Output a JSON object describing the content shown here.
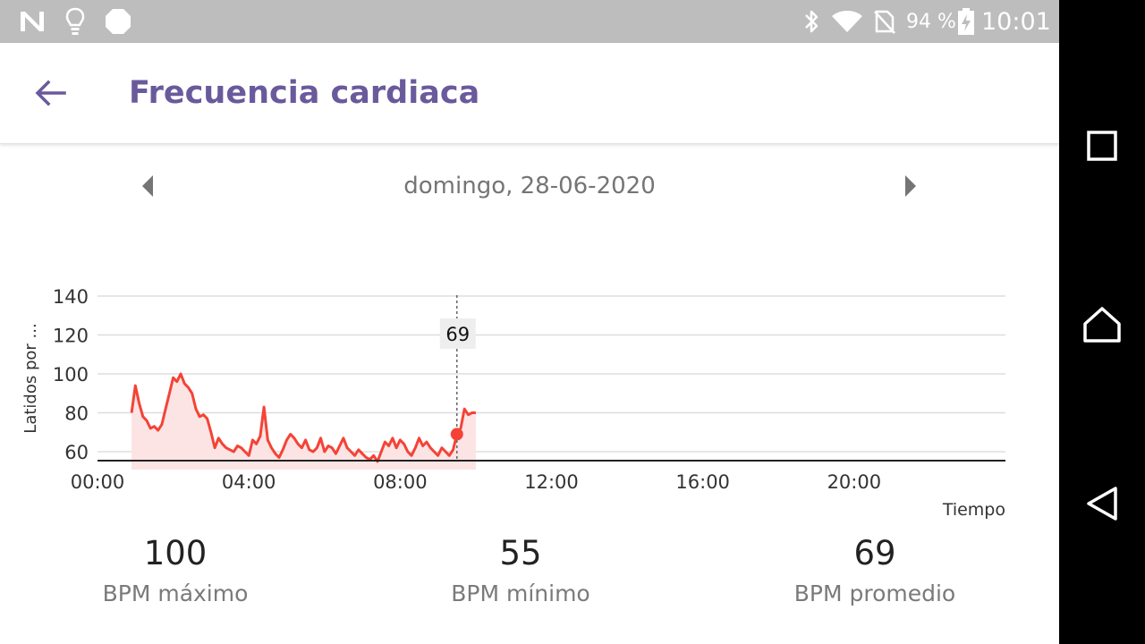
{
  "status_bar": {
    "icons": [
      "n-icon",
      "lightbulb-icon",
      "stop-octagon-icon",
      "bluetooth-icon",
      "wifi-icon",
      "no-sim-icon",
      "battery-charging-icon"
    ],
    "battery": "94 %",
    "time": "10:01"
  },
  "header": {
    "back_icon": "arrow-back-icon",
    "title": "Frecuencia cardiaca"
  },
  "date_nav": {
    "prev_icon": "triangle-left-icon",
    "date": "domingo, 28-06-2020",
    "next_icon": "triangle-right-icon"
  },
  "chart_data": {
    "type": "line",
    "ylabel": "Latidos por ...",
    "xlabel": "Tiempo",
    "ylim": [
      55,
      140
    ],
    "y_ticks": [
      60,
      80,
      100,
      120,
      140
    ],
    "x_ticks": [
      "00:00",
      "04:00",
      "08:00",
      "12:00",
      "16:00",
      "20:00"
    ],
    "xlim_hours": [
      0,
      24
    ],
    "grid": true,
    "line_color": "#f44336",
    "fill_color": "#fde4e4",
    "tooltip": {
      "x_hours": 9.5,
      "value": 69,
      "label": "69"
    },
    "series": [
      {
        "x_hours": [
          0.9,
          1.0,
          1.1,
          1.2,
          1.3,
          1.4,
          1.5,
          1.6,
          1.7,
          1.8,
          1.9,
          2.0,
          2.1,
          2.2,
          2.3,
          2.4,
          2.5,
          2.6,
          2.7,
          2.8,
          2.9,
          3.0,
          3.1,
          3.2,
          3.3,
          3.4,
          3.5,
          3.6,
          3.7,
          3.8,
          3.9,
          4.0,
          4.1,
          4.2,
          4.3,
          4.4,
          4.5,
          4.6,
          4.7,
          4.8,
          4.9,
          5.0,
          5.1,
          5.2,
          5.3,
          5.4,
          5.5,
          5.6,
          5.7,
          5.8,
          5.9,
          6.0,
          6.1,
          6.2,
          6.3,
          6.4,
          6.5,
          6.6,
          6.7,
          6.8,
          6.9,
          7.0,
          7.1,
          7.2,
          7.3,
          7.4,
          7.5,
          7.6,
          7.7,
          7.8,
          7.9,
          8.0,
          8.1,
          8.2,
          8.3,
          8.4,
          8.5,
          8.6,
          8.7,
          8.8,
          8.9,
          9.0,
          9.1,
          9.2,
          9.3,
          9.4,
          9.5,
          9.6,
          9.7,
          9.8,
          9.9,
          10.0
        ],
        "values": [
          80,
          94,
          85,
          78,
          76,
          72,
          73,
          71,
          74,
          82,
          90,
          98,
          96,
          100,
          95,
          93,
          90,
          82,
          78,
          79,
          77,
          70,
          62,
          67,
          64,
          62,
          61,
          60,
          63,
          62,
          60,
          58,
          66,
          64,
          68,
          83,
          66,
          62,
          59,
          57,
          61,
          66,
          69,
          67,
          64,
          62,
          66,
          61,
          60,
          62,
          67,
          60,
          63,
          62,
          59,
          63,
          67,
          62,
          60,
          58,
          61,
          59,
          57,
          56,
          58,
          55,
          60,
          65,
          63,
          67,
          62,
          66,
          64,
          60,
          58,
          62,
          67,
          63,
          65,
          62,
          60,
          58,
          62,
          60,
          58,
          61,
          69,
          72,
          82,
          79,
          80,
          80
        ]
      }
    ]
  },
  "stats": [
    {
      "value": "100",
      "label": "BPM máximo"
    },
    {
      "value": "55",
      "label": "BPM mínimo"
    },
    {
      "value": "69",
      "label": "BPM promedio"
    }
  ],
  "nav_bar": {
    "icons": [
      "square-recents-icon",
      "home-icon",
      "triangle-back-icon"
    ]
  }
}
